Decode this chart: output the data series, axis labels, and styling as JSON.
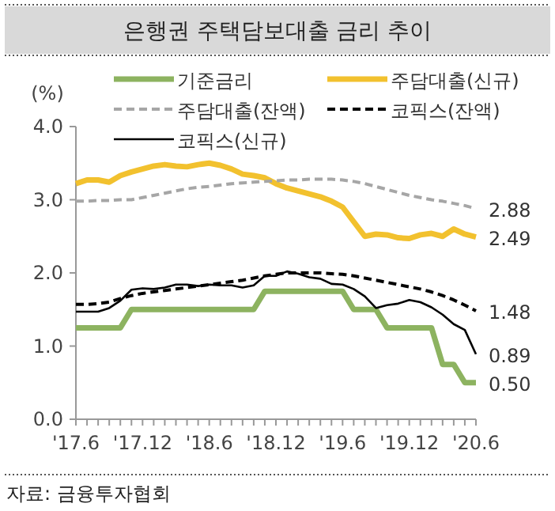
{
  "chart_data": {
    "type": "line",
    "title": "은행권 주택담보대출 금리 추이",
    "ylabel": "(%)",
    "categories": [
      "'17.6",
      null,
      null,
      null,
      null,
      null,
      "'17.12",
      null,
      null,
      null,
      null,
      null,
      "'18.6",
      null,
      null,
      null,
      null,
      null,
      "'18.12",
      null,
      null,
      null,
      null,
      null,
      "'19.6",
      null,
      null,
      null,
      null,
      null,
      "'19.12",
      null,
      null,
      null,
      null,
      null,
      "'20.6"
    ],
    "ylim": [
      0,
      4
    ],
    "yticks": [
      {
        "value": 0,
        "label": "0.0"
      },
      {
        "value": 1,
        "label": "1.0"
      },
      {
        "value": 2,
        "label": "2.0"
      },
      {
        "value": 3,
        "label": "3.0"
      },
      {
        "value": 4,
        "label": "4.0"
      }
    ],
    "grid": false,
    "legend": "top",
    "marker": "none",
    "series": [
      {
        "name": "기준금리",
        "color": "#8db360",
        "line_style": "solid",
        "values": [
          1.25,
          1.25,
          1.25,
          1.25,
          1.25,
          1.5,
          1.5,
          1.5,
          1.5,
          1.5,
          1.5,
          1.5,
          1.5,
          1.5,
          1.5,
          1.5,
          1.5,
          1.75,
          1.75,
          1.75,
          1.75,
          1.75,
          1.75,
          1.75,
          1.75,
          1.5,
          1.5,
          1.5,
          1.25,
          1.25,
          1.25,
          1.25,
          1.25,
          0.75,
          0.75,
          0.5,
          0.5
        ],
        "value_labels": [
          null,
          null,
          null,
          null,
          null,
          null,
          null,
          null,
          null,
          null,
          null,
          null,
          null,
          null,
          null,
          null,
          null,
          null,
          null,
          null,
          null,
          null,
          null,
          null,
          null,
          null,
          null,
          null,
          null,
          null,
          null,
          null,
          null,
          null,
          null,
          null,
          "0.50"
        ]
      },
      {
        "name": "주담대출(신규)",
        "color": "#f2c12e",
        "line_style": "solid",
        "values": [
          3.22,
          3.27,
          3.27,
          3.24,
          3.33,
          3.38,
          3.42,
          3.46,
          3.48,
          3.46,
          3.45,
          3.48,
          3.5,
          3.47,
          3.42,
          3.35,
          3.33,
          3.3,
          3.22,
          3.16,
          3.12,
          3.08,
          3.04,
          2.98,
          2.9,
          2.7,
          2.5,
          2.53,
          2.52,
          2.48,
          2.47,
          2.52,
          2.54,
          2.5,
          2.6,
          2.53,
          2.49
        ],
        "value_labels": [
          null,
          null,
          null,
          null,
          null,
          null,
          null,
          null,
          null,
          null,
          null,
          null,
          null,
          null,
          null,
          null,
          null,
          null,
          null,
          null,
          null,
          null,
          null,
          null,
          null,
          null,
          null,
          null,
          null,
          null,
          null,
          null,
          null,
          null,
          null,
          null,
          "2.49"
        ]
      },
      {
        "name": "주담대출(잔액)",
        "color": "#a6a6a6",
        "line_style": "dashed",
        "values": [
          2.98,
          2.98,
          2.99,
          2.99,
          3.0,
          3.0,
          3.03,
          3.06,
          3.09,
          3.12,
          3.15,
          3.17,
          3.18,
          3.2,
          3.22,
          3.23,
          3.24,
          3.25,
          3.26,
          3.27,
          3.27,
          3.28,
          3.28,
          3.28,
          3.27,
          3.25,
          3.22,
          3.18,
          3.14,
          3.1,
          3.06,
          3.03,
          3.0,
          2.98,
          2.95,
          2.92,
          2.88
        ],
        "value_labels": [
          null,
          null,
          null,
          null,
          null,
          null,
          null,
          null,
          null,
          null,
          null,
          null,
          null,
          null,
          null,
          null,
          null,
          null,
          null,
          null,
          null,
          null,
          null,
          null,
          null,
          null,
          null,
          null,
          null,
          null,
          null,
          null,
          null,
          null,
          null,
          null,
          "2.88"
        ]
      },
      {
        "name": "코픽스(잔액)",
        "color": "#000000",
        "line_style": "dashed",
        "values": [
          1.57,
          1.57,
          1.58,
          1.6,
          1.65,
          1.69,
          1.72,
          1.74,
          1.76,
          1.78,
          1.8,
          1.82,
          1.84,
          1.86,
          1.88,
          1.9,
          1.93,
          1.96,
          1.98,
          2.0,
          2.0,
          2.0,
          2.0,
          1.99,
          1.98,
          1.96,
          1.93,
          1.9,
          1.87,
          1.84,
          1.81,
          1.78,
          1.74,
          1.69,
          1.63,
          1.56,
          1.48
        ],
        "value_labels": [
          null,
          null,
          null,
          null,
          null,
          null,
          null,
          null,
          null,
          null,
          null,
          null,
          null,
          null,
          null,
          null,
          null,
          null,
          null,
          null,
          null,
          null,
          null,
          null,
          null,
          null,
          null,
          null,
          null,
          null,
          null,
          null,
          null,
          null,
          null,
          null,
          "1.48"
        ]
      },
      {
        "name": "코픽스(신규)",
        "color": "#000000",
        "line_style": "solid",
        "values": [
          1.47,
          1.47,
          1.47,
          1.52,
          1.62,
          1.77,
          1.79,
          1.78,
          1.8,
          1.84,
          1.84,
          1.82,
          1.84,
          1.83,
          1.83,
          1.8,
          1.83,
          1.96,
          1.96,
          2.02,
          1.99,
          1.94,
          1.92,
          1.85,
          1.84,
          1.78,
          1.68,
          1.52,
          1.56,
          1.58,
          1.63,
          1.6,
          1.53,
          1.43,
          1.3,
          1.22,
          0.89
        ],
        "value_labels": [
          null,
          null,
          null,
          null,
          null,
          null,
          null,
          null,
          null,
          null,
          null,
          null,
          null,
          null,
          null,
          null,
          null,
          null,
          null,
          null,
          null,
          null,
          null,
          null,
          null,
          null,
          null,
          null,
          null,
          null,
          null,
          null,
          null,
          null,
          null,
          null,
          "0.89"
        ]
      }
    ],
    "annotations": [
      "자료: 금융투자협회"
    ]
  }
}
